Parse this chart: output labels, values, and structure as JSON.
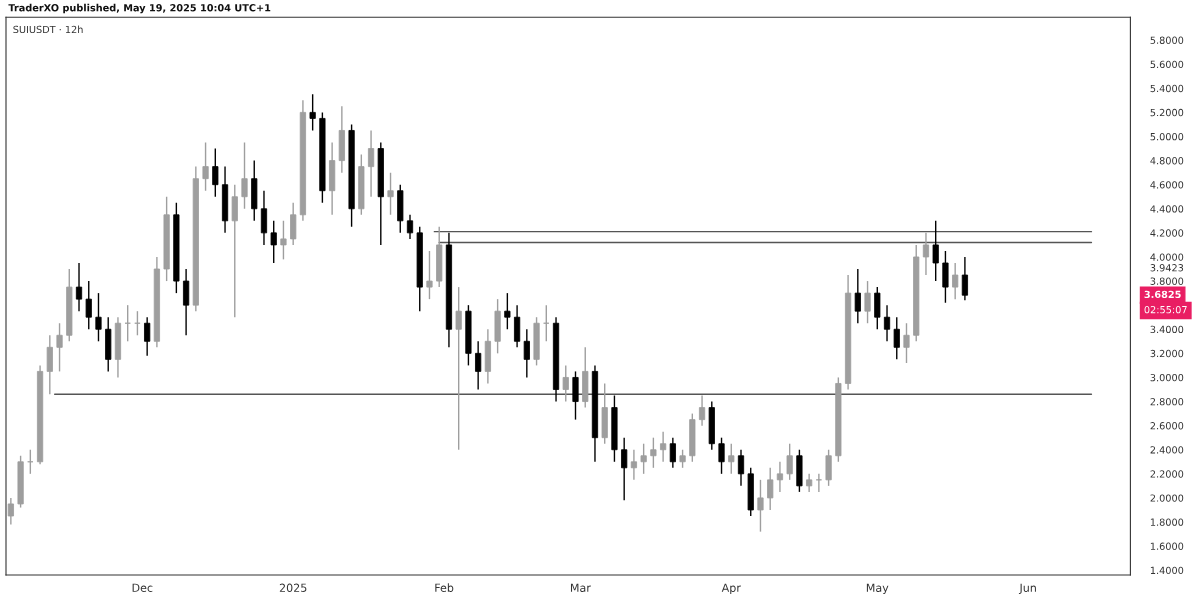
{
  "chart_data": {
    "type": "candlestick",
    "title": "SUIUSDT · 12h",
    "subtitle": "TraderXO published, May 19, 2025 10:04 UTC+1",
    "x": [
      "2024-11-04",
      "2024-11-06",
      "2024-11-08",
      "2024-11-10",
      "2024-11-12",
      "2024-11-14",
      "2024-11-16",
      "2024-11-18",
      "2024-11-20",
      "2024-11-22",
      "2024-11-24",
      "2024-11-26",
      "2024-11-28",
      "2024-11-30",
      "2024-12-02",
      "2024-12-04",
      "2024-12-06",
      "2024-12-08",
      "2024-12-10",
      "2024-12-12",
      "2024-12-14",
      "2024-12-16",
      "2024-12-18",
      "2024-12-20",
      "2024-12-22",
      "2024-12-24",
      "2024-12-26",
      "2024-12-28",
      "2024-12-30",
      "2025-01-01",
      "2025-01-03",
      "2025-01-05",
      "2025-01-07",
      "2025-01-09",
      "2025-01-11",
      "2025-01-13",
      "2025-01-15",
      "2025-01-17",
      "2025-01-19",
      "2025-01-21",
      "2025-01-23",
      "2025-01-25",
      "2025-01-27",
      "2025-01-29",
      "2025-01-31",
      "2025-02-02",
      "2025-02-04",
      "2025-02-06",
      "2025-02-08",
      "2025-02-10",
      "2025-02-12",
      "2025-02-14",
      "2025-02-16",
      "2025-02-18",
      "2025-02-20",
      "2025-02-22",
      "2025-02-24",
      "2025-02-26",
      "2025-02-28",
      "2025-03-02",
      "2025-03-04",
      "2025-03-06",
      "2025-03-08",
      "2025-03-10",
      "2025-03-12",
      "2025-03-14",
      "2025-03-16",
      "2025-03-18",
      "2025-03-20",
      "2025-03-22",
      "2025-03-24",
      "2025-03-26",
      "2025-03-28",
      "2025-03-30",
      "2025-04-01",
      "2025-04-03",
      "2025-04-05",
      "2025-04-07",
      "2025-04-09",
      "2025-04-11",
      "2025-04-13",
      "2025-04-15",
      "2025-04-17",
      "2025-04-19",
      "2025-04-21",
      "2025-04-23",
      "2025-04-25",
      "2025-04-27",
      "2025-04-29",
      "2025-05-01",
      "2025-05-03",
      "2025-05-05",
      "2025-05-07",
      "2025-05-09",
      "2025-05-11",
      "2025-05-13",
      "2025-05-15",
      "2025-05-17",
      "2025-05-19"
    ],
    "ohlc": [
      [
        1.85,
        2.0,
        1.78,
        1.95
      ],
      [
        1.95,
        2.35,
        1.92,
        2.3
      ],
      [
        2.3,
        2.4,
        2.2,
        2.3
      ],
      [
        2.3,
        3.1,
        2.28,
        3.05
      ],
      [
        3.05,
        3.35,
        2.86,
        3.25
      ],
      [
        3.25,
        3.45,
        3.05,
        3.35
      ],
      [
        3.35,
        3.9,
        3.3,
        3.75
      ],
      [
        3.75,
        3.95,
        3.55,
        3.65
      ],
      [
        3.65,
        3.8,
        3.4,
        3.5
      ],
      [
        3.5,
        3.7,
        3.3,
        3.4
      ],
      [
        3.4,
        3.5,
        3.05,
        3.15
      ],
      [
        3.15,
        3.5,
        3.0,
        3.45
      ],
      [
        3.45,
        3.6,
        3.3,
        3.45
      ],
      [
        3.45,
        3.55,
        3.35,
        3.45
      ],
      [
        3.45,
        3.5,
        3.18,
        3.3
      ],
      [
        3.3,
        4.0,
        3.25,
        3.9
      ],
      [
        3.9,
        4.5,
        3.8,
        4.35
      ],
      [
        4.35,
        4.45,
        3.7,
        3.8
      ],
      [
        3.8,
        3.9,
        3.35,
        3.6
      ],
      [
        3.6,
        4.75,
        3.55,
        4.65
      ],
      [
        4.65,
        4.95,
        4.55,
        4.75
      ],
      [
        4.75,
        4.9,
        4.5,
        4.6
      ],
      [
        4.6,
        4.75,
        4.2,
        4.3
      ],
      [
        4.3,
        4.6,
        3.5,
        4.5
      ],
      [
        4.5,
        4.95,
        4.4,
        4.65
      ],
      [
        4.65,
        4.8,
        4.3,
        4.4
      ],
      [
        4.4,
        4.55,
        4.1,
        4.2
      ],
      [
        4.2,
        4.3,
        3.95,
        4.1
      ],
      [
        4.1,
        4.3,
        3.98,
        4.15
      ],
      [
        4.15,
        4.45,
        4.1,
        4.35
      ],
      [
        4.35,
        5.3,
        4.3,
        5.2
      ],
      [
        5.2,
        5.35,
        5.05,
        5.15
      ],
      [
        5.15,
        5.2,
        4.45,
        4.55
      ],
      [
        4.55,
        4.95,
        4.35,
        4.8
      ],
      [
        4.8,
        5.25,
        4.7,
        5.05
      ],
      [
        5.05,
        5.1,
        4.25,
        4.4
      ],
      [
        4.4,
        4.85,
        4.35,
        4.75
      ],
      [
        4.75,
        5.05,
        4.5,
        4.9
      ],
      [
        4.9,
        4.95,
        4.1,
        4.5
      ],
      [
        4.5,
        4.7,
        4.35,
        4.55
      ],
      [
        4.55,
        4.6,
        4.2,
        4.3
      ],
      [
        4.3,
        4.35,
        4.15,
        4.2
      ],
      [
        4.2,
        4.25,
        3.55,
        3.75
      ],
      [
        3.75,
        4.05,
        3.65,
        3.8
      ],
      [
        3.8,
        4.25,
        3.75,
        4.1
      ],
      [
        4.1,
        4.2,
        3.25,
        3.4
      ],
      [
        3.4,
        3.75,
        2.4,
        3.55
      ],
      [
        3.55,
        3.6,
        3.1,
        3.2
      ],
      [
        3.2,
        3.3,
        2.9,
        3.05
      ],
      [
        3.05,
        3.4,
        2.95,
        3.3
      ],
      [
        3.3,
        3.65,
        3.2,
        3.55
      ],
      [
        3.55,
        3.7,
        3.4,
        3.5
      ],
      [
        3.5,
        3.6,
        3.25,
        3.3
      ],
      [
        3.3,
        3.4,
        3.0,
        3.15
      ],
      [
        3.15,
        3.5,
        3.1,
        3.45
      ],
      [
        3.45,
        3.6,
        3.3,
        3.45
      ],
      [
        3.45,
        3.5,
        2.8,
        2.9
      ],
      [
        2.9,
        3.1,
        2.8,
        3.0
      ],
      [
        3.0,
        3.05,
        2.65,
        2.8
      ],
      [
        2.8,
        3.25,
        2.75,
        3.05
      ],
      [
        3.05,
        3.1,
        2.3,
        2.5
      ],
      [
        2.5,
        2.95,
        2.45,
        2.75
      ],
      [
        2.75,
        2.85,
        2.3,
        2.4
      ],
      [
        2.4,
        2.5,
        1.98,
        2.25
      ],
      [
        2.25,
        2.4,
        2.15,
        2.3
      ],
      [
        2.3,
        2.45,
        2.2,
        2.35
      ],
      [
        2.35,
        2.5,
        2.25,
        2.4
      ],
      [
        2.4,
        2.55,
        2.3,
        2.45
      ],
      [
        2.45,
        2.5,
        2.25,
        2.3
      ],
      [
        2.3,
        2.4,
        2.25,
        2.35
      ],
      [
        2.35,
        2.7,
        2.3,
        2.65
      ],
      [
        2.65,
        2.85,
        2.6,
        2.75
      ],
      [
        2.75,
        2.8,
        2.4,
        2.45
      ],
      [
        2.45,
        2.5,
        2.2,
        2.3
      ],
      [
        2.3,
        2.45,
        2.2,
        2.35
      ],
      [
        2.35,
        2.4,
        2.1,
        2.2
      ],
      [
        2.2,
        2.25,
        1.85,
        1.9
      ],
      [
        1.9,
        2.15,
        1.72,
        2.0
      ],
      [
        2.0,
        2.25,
        1.9,
        2.15
      ],
      [
        2.15,
        2.3,
        2.05,
        2.2
      ],
      [
        2.2,
        2.45,
        2.15,
        2.35
      ],
      [
        2.35,
        2.4,
        2.05,
        2.1
      ],
      [
        2.1,
        2.2,
        2.05,
        2.15
      ],
      [
        2.15,
        2.2,
        2.05,
        2.15
      ],
      [
        2.15,
        2.4,
        2.1,
        2.35
      ],
      [
        2.35,
        3.0,
        2.3,
        2.95
      ],
      [
        2.95,
        3.85,
        2.9,
        3.7
      ],
      [
        3.7,
        3.9,
        3.45,
        3.55
      ],
      [
        3.55,
        3.8,
        3.45,
        3.7
      ],
      [
        3.7,
        3.75,
        3.4,
        3.5
      ],
      [
        3.5,
        3.6,
        3.3,
        3.4
      ],
      [
        3.4,
        3.5,
        3.15,
        3.25
      ],
      [
        3.25,
        3.45,
        3.12,
        3.35
      ],
      [
        3.35,
        4.1,
        3.3,
        4.0
      ],
      [
        4.0,
        4.2,
        3.85,
        4.1
      ],
      [
        4.1,
        4.3,
        3.8,
        3.95
      ],
      [
        3.95,
        4.05,
        3.62,
        3.75
      ],
      [
        3.75,
        3.95,
        3.65,
        3.85
      ],
      [
        3.85,
        4.0,
        3.64,
        3.6825
      ]
    ],
    "colors": [
      "#9e9e9e",
      "#9e9e9e",
      "#9e9e9e",
      "#9e9e9e",
      "#9e9e9e",
      "#9e9e9e",
      "#9e9e9e",
      "#000000",
      "#000000",
      "#000000",
      "#000000",
      "#9e9e9e",
      "#9e9e9e",
      "#9e9e9e",
      "#000000",
      "#9e9e9e",
      "#9e9e9e",
      "#000000",
      "#000000",
      "#9e9e9e",
      "#9e9e9e",
      "#000000",
      "#000000",
      "#9e9e9e",
      "#9e9e9e",
      "#000000",
      "#000000",
      "#000000",
      "#9e9e9e",
      "#9e9e9e",
      "#9e9e9e",
      "#000000",
      "#000000",
      "#9e9e9e",
      "#9e9e9e",
      "#000000",
      "#9e9e9e",
      "#9e9e9e",
      "#000000",
      "#9e9e9e",
      "#000000",
      "#000000",
      "#000000",
      "#9e9e9e",
      "#9e9e9e",
      "#000000",
      "#9e9e9e",
      "#000000",
      "#000000",
      "#9e9e9e",
      "#9e9e9e",
      "#000000",
      "#000000",
      "#000000",
      "#9e9e9e",
      "#9e9e9e",
      "#000000",
      "#9e9e9e",
      "#000000",
      "#9e9e9e",
      "#000000",
      "#9e9e9e",
      "#000000",
      "#000000",
      "#9e9e9e",
      "#9e9e9e",
      "#9e9e9e",
      "#9e9e9e",
      "#000000",
      "#9e9e9e",
      "#9e9e9e",
      "#9e9e9e",
      "#000000",
      "#000000",
      "#9e9e9e",
      "#000000",
      "#000000",
      "#9e9e9e",
      "#9e9e9e",
      "#9e9e9e",
      "#9e9e9e",
      "#000000",
      "#9e9e9e",
      "#9e9e9e",
      "#9e9e9e",
      "#9e9e9e",
      "#9e9e9e",
      "#000000",
      "#9e9e9e",
      "#000000",
      "#000000",
      "#000000",
      "#9e9e9e",
      "#9e9e9e",
      "#9e9e9e",
      "#000000",
      "#000000",
      "#9e9e9e",
      "#000000"
    ],
    "series": [
      {
        "type": "line",
        "color": "#555555",
        "x": [
          "2025-01-30",
          "2025-06-14"
        ],
        "values": [
          4.21,
          4.21
        ]
      },
      {
        "type": "line",
        "color": "#555555",
        "x": [
          "2025-01-31",
          "2025-06-14"
        ],
        "values": [
          4.12,
          4.12
        ]
      },
      {
        "type": "line",
        "color": "#555555",
        "x": [
          "2024-11-13",
          "2025-06-14"
        ],
        "values": [
          2.86,
          2.86
        ]
      }
    ],
    "annotations": [
      "3.6825",
      "02:55:07"
    ],
    "xlim": [
      "2024-11-03",
      "2025-06-22"
    ],
    "xticks": [
      {
        "value": "2024-12-01",
        "label": "Dec"
      },
      {
        "value": "2025-01-01",
        "label": "2025"
      },
      {
        "value": "2025-02-01",
        "label": "Feb"
      },
      {
        "value": "2025-03-01",
        "label": "Mar"
      },
      {
        "value": "2025-04-01",
        "label": "Apr"
      },
      {
        "value": "2025-05-01",
        "label": "May"
      },
      {
        "value": "2025-06-01",
        "label": "Jun"
      }
    ],
    "ylim": [
      1.36,
      5.99
    ],
    "yticks": [
      {
        "value": 1.4,
        "label": "1.4000"
      },
      {
        "value": 1.6,
        "label": "1.6000"
      },
      {
        "value": 1.8,
        "label": "1.8000"
      },
      {
        "value": 2.0,
        "label": "2.0000"
      },
      {
        "value": 2.2,
        "label": "2.2000"
      },
      {
        "value": 2.4,
        "label": "2.4000"
      },
      {
        "value": 2.6,
        "label": "2.6000"
      },
      {
        "value": 2.8,
        "label": "2.8000"
      },
      {
        "value": 3.0,
        "label": "3.0000"
      },
      {
        "value": 3.2,
        "label": "3.2000"
      },
      {
        "value": 3.4,
        "label": "3.4000"
      },
      {
        "value": 3.8,
        "label": "3.8000"
      },
      {
        "value": 3.9423,
        "label": "3.9423"
      },
      {
        "value": 4.0,
        "label": "4.0000"
      },
      {
        "value": 4.2,
        "label": "4.2000"
      },
      {
        "value": 4.4,
        "label": "4.4000"
      },
      {
        "value": 4.6,
        "label": "4.6000"
      },
      {
        "value": 4.8,
        "label": "4.8000"
      },
      {
        "value": 5.0,
        "label": "5.0000"
      },
      {
        "value": 5.2,
        "label": "5.2000"
      },
      {
        "value": 5.4,
        "label": "5.4000"
      },
      {
        "value": 5.6,
        "label": "5.6000"
      },
      {
        "value": 5.8,
        "label": "5.8000"
      }
    ],
    "grid": false
  }
}
